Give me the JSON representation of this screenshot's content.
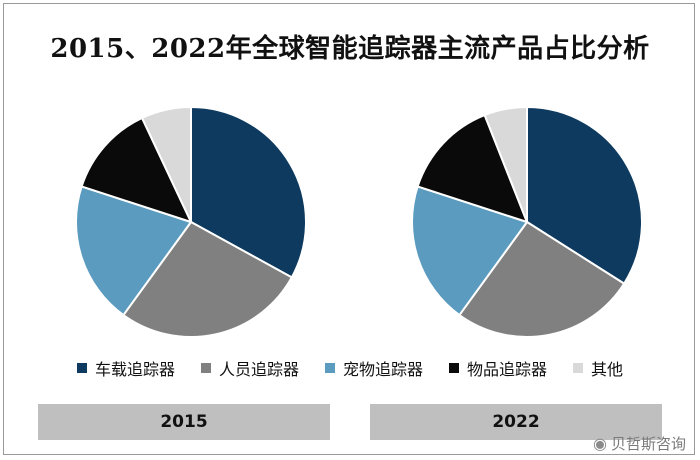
{
  "title": "2015、2022年全球智能追踪器主流产品占比分析",
  "legend": [
    "车载追踪器",
    "人员追踪器",
    "宠物追踪器",
    "物品追踪器",
    "其他"
  ],
  "colors": [
    "#0d3a5e",
    "#808080",
    "#5a9bbf",
    "#0a0a0a",
    "#d9d9d9"
  ],
  "chart_data": [
    {
      "type": "pie",
      "title": "2015",
      "categories": [
        "车载追踪器",
        "人员追踪器",
        "宠物追踪器",
        "物品追踪器",
        "其他"
      ],
      "values": [
        33,
        27,
        20,
        13,
        7
      ]
    },
    {
      "type": "pie",
      "title": "2022",
      "categories": [
        "车载追踪器",
        "人员追踪器",
        "宠物追踪器",
        "物品追踪器",
        "其他"
      ],
      "values": [
        34,
        26,
        20,
        14,
        6
      ]
    }
  ],
  "watermark": "贝哲斯咨询"
}
